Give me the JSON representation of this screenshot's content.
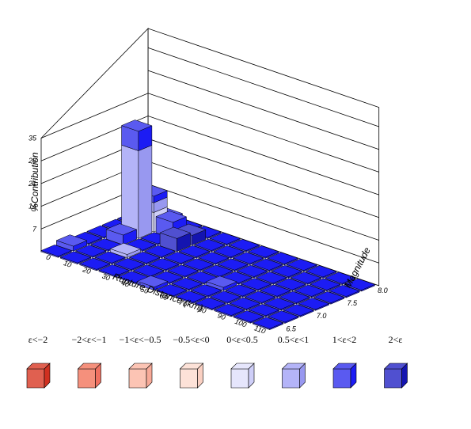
{
  "chart_data": {
    "type": "bar3d",
    "xlabel": "Rupture Distance (km)",
    "ylabel": "Magnitude",
    "zlabel": "%Contribution",
    "x_ticks": [
      "0",
      "10",
      "20",
      "30",
      "40",
      "50",
      "60",
      "70",
      "80",
      "90",
      "100",
      "110"
    ],
    "y_ticks": [
      "6.5",
      "7.0",
      "7.5",
      "8.0"
    ],
    "z_ticks": [
      "7",
      "14",
      "21",
      "28",
      "35"
    ],
    "zlim": [
      0,
      35
    ],
    "grid": true,
    "legend_position": "bottom",
    "legend": [
      {
        "label": "ε<−2",
        "face": "#e06050",
        "side": "#d03020"
      },
      {
        "label": "−2<ε<−1",
        "face": "#f5907c",
        "side": "#f07060"
      },
      {
        "label": "−1<ε<−0.5",
        "face": "#fcc4b4",
        "side": "#f8aa98"
      },
      {
        "label": "−0.5<ε<0",
        "face": "#fde2d8",
        "side": "#fad0c2"
      },
      {
        "label": "0<ε<0.5",
        "face": "#e6e6fc",
        "side": "#cfcff8"
      },
      {
        "label": "0.5<ε<1",
        "face": "#b4b4f8",
        "side": "#9898f0"
      },
      {
        "label": "1<ε<2",
        "face": "#5a5af0",
        "side": "#1c1cf4"
      },
      {
        "label": "2<ε",
        "face": "#5050d0",
        "side": "#1414b0"
      }
    ],
    "bars": [
      {
        "col": 0,
        "row": 1,
        "segments": [
          {
            "bin": 6,
            "value": 1.5
          }
        ]
      },
      {
        "col": 1,
        "row": 3,
        "segments": [
          {
            "bin": 6,
            "value": 3
          }
        ]
      },
      {
        "col": 1,
        "row": 4,
        "segments": [
          {
            "bin": 5,
            "value": 27
          },
          {
            "bin": 6,
            "value": 6
          }
        ]
      },
      {
        "col": 1,
        "row": 5,
        "segments": [
          {
            "bin": 4,
            "value": 6
          },
          {
            "bin": 5,
            "value": 3
          },
          {
            "bin": 6,
            "value": 2
          }
        ]
      },
      {
        "col": 1,
        "row": 6,
        "segments": [
          {
            "bin": 6,
            "value": 2
          }
        ]
      },
      {
        "col": 2,
        "row": 2,
        "segments": [
          {
            "bin": 5,
            "value": 1
          }
        ]
      },
      {
        "col": 2,
        "row": 5,
        "segments": [
          {
            "bin": 6,
            "value": 5
          }
        ]
      },
      {
        "col": 3,
        "row": 4,
        "segments": [
          {
            "bin": 7,
            "value": 4
          }
        ]
      },
      {
        "col": 3,
        "row": 5,
        "segments": [
          {
            "bin": 7,
            "value": 3
          }
        ]
      },
      {
        "col": 5,
        "row": 0,
        "segments": [
          {
            "bin": 6,
            "value": 1
          }
        ]
      },
      {
        "col": 7,
        "row": 2,
        "segments": [
          {
            "bin": 6,
            "value": 1
          }
        ]
      }
    ],
    "grid_cols": 12,
    "grid_rows": 7,
    "base_bin": 6
  }
}
